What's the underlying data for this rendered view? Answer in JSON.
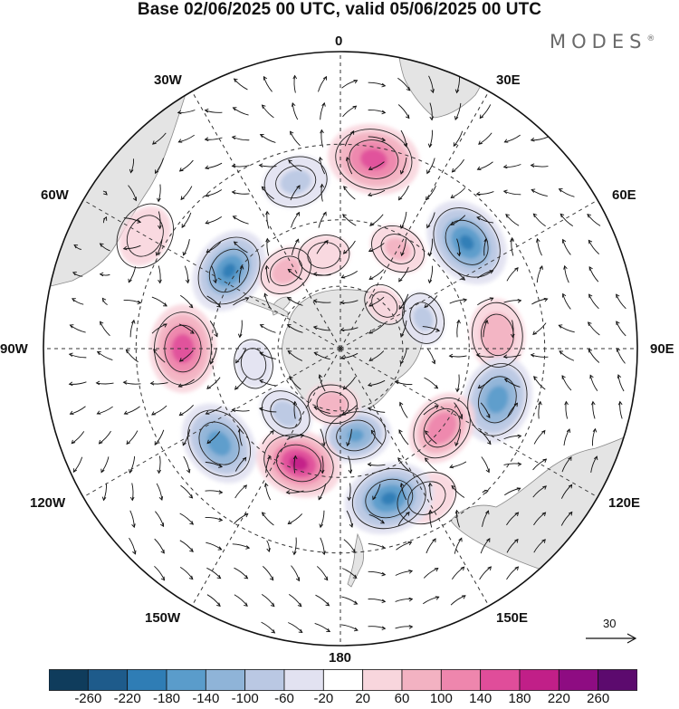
{
  "title": "Base 02/06/2025 00 UTC, valid 05/06/2025 00 UTC",
  "brand": "MODES",
  "brand_mark": "®",
  "longitude_labels": {
    "top": "0",
    "top_right": "30E",
    "right_upper": "60E",
    "right": "90E",
    "right_lower": "120E",
    "bottom_right": "150E",
    "bottom": "180",
    "bottom_left": "150W",
    "left_lower": "120W",
    "left": "90W",
    "left_upper": "60W",
    "top_left": "30W"
  },
  "vector_scale": {
    "label": "30",
    "icon": "right-arrow-icon"
  },
  "colorbar": {
    "tick_labels": [
      "-260",
      "-220",
      "-180",
      "-140",
      "-100",
      "-60",
      "-20",
      "20",
      "60",
      "100",
      "140",
      "180",
      "220",
      "260"
    ],
    "colors": [
      "#0f3c5c",
      "#1e5b8b",
      "#2f7db5",
      "#5a9ccb",
      "#8fb4d8",
      "#bac8e3",
      "#e2e2f1",
      "#ffffff",
      "#f8d6dd",
      "#f3b2c2",
      "#ee86ad",
      "#e04d9a",
      "#c11f88",
      "#8e0c82",
      "#5c0a6e"
    ]
  },
  "anomaly_centers": [
    {
      "lon": 10,
      "lat": -33,
      "value": 165
    },
    {
      "lon": 50,
      "lat": -40,
      "value": -190
    },
    {
      "lon": 30,
      "lat": -54,
      "value": 70
    },
    {
      "lon": 85,
      "lat": -42,
      "value": 100
    },
    {
      "lon": 108,
      "lat": -40,
      "value": -170
    },
    {
      "lon": 128,
      "lat": -50,
      "value": 140
    },
    {
      "lon": 150,
      "lat": -38,
      "value": 55
    },
    {
      "lon": 162,
      "lat": -42,
      "value": -190
    },
    {
      "lon": 170,
      "lat": -62,
      "value": -150
    },
    {
      "lon": -160,
      "lat": -52,
      "value": 200
    },
    {
      "lon": -172,
      "lat": -72,
      "value": 90
    },
    {
      "lon": -128,
      "lat": -43,
      "value": -170
    },
    {
      "lon": -140,
      "lat": -63,
      "value": -80
    },
    {
      "lon": -90,
      "lat": -42,
      "value": 175
    },
    {
      "lon": -55,
      "lat": -48,
      "value": -190
    },
    {
      "lon": -35,
      "lat": -60,
      "value": 80
    },
    {
      "lon": -15,
      "lat": -38,
      "value": -70
    },
    {
      "lon": -60,
      "lat": -25,
      "value": 40
    },
    {
      "lon": -10,
      "lat": -60,
      "value": 60
    },
    {
      "lon": 70,
      "lat": -62,
      "value": -70
    },
    {
      "lon": -100,
      "lat": -62,
      "value": -50
    },
    {
      "lon": 45,
      "lat": -70,
      "value": 40
    }
  ]
}
